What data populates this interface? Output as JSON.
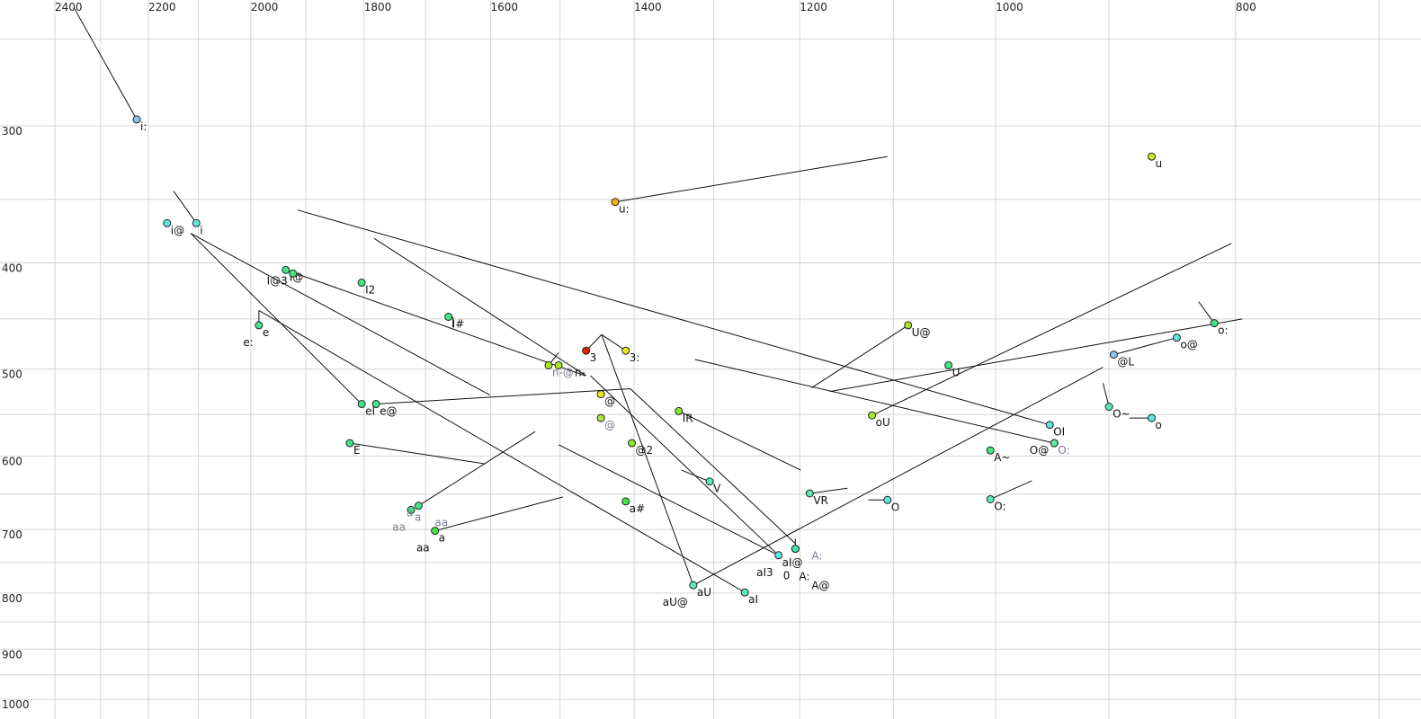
{
  "chart_data": {
    "type": "scatter",
    "title": "",
    "xlabel": "",
    "ylabel": "",
    "x_scale": "log",
    "y_scale": "log",
    "x_reversed": true,
    "xlim": [
      2400,
      700
    ],
    "ylim": [
      250,
      1000
    ],
    "grid": true,
    "x_gridlines": [
      2400,
      2300,
      2200,
      2100,
      2000,
      1900,
      1800,
      1700,
      1600,
      1500,
      1400,
      1300,
      1200,
      1100,
      1000,
      900,
      800,
      700
    ],
    "y_gridlines": [
      250,
      300,
      350,
      400,
      450,
      500,
      550,
      600,
      650,
      700,
      750,
      800,
      850,
      900,
      950,
      1000
    ],
    "x_ticks": [
      "2400",
      "2200",
      "2000",
      "1800",
      "1600",
      "1400",
      "1200",
      "1000",
      "800"
    ],
    "y_ticks": [
      "300",
      "400",
      "500",
      "600",
      "700",
      "800",
      "900",
      "1000"
    ],
    "colors": {
      "light_blue": "#8cc4f0",
      "cyan": "#5ee8dc",
      "green": "#44e48a",
      "bright_green": "#44e444",
      "yellow_green": "#a8e820",
      "yellow": "#e8e820",
      "orange": "#f0b010",
      "red": "#e02000"
    },
    "points": [
      {
        "labels": [
          "i:"
        ],
        "f2": 2224,
        "f1": 296,
        "color": "#8cc4f0"
      },
      {
        "labels": [
          "u"
        ],
        "f2": 865,
        "f1": 320,
        "color": "#c8e820"
      },
      {
        "labels": [
          "u:"
        ],
        "f2": 1425,
        "f1": 352,
        "color": "#f0b010"
      },
      {
        "labels": [
          "i@"
        ],
        "f2": 2162,
        "f1": 368,
        "color": "#5ee8dc"
      },
      {
        "labels": [
          "i"
        ],
        "f2": 2104,
        "f1": 368,
        "color": "#5ee8dc"
      },
      {
        "labels": [
          "I@"
        ],
        "f2": 1936,
        "f1": 406,
        "color": "#44e48a"
      },
      {
        "labels": [
          "I@3"
        ],
        "f2": 1923,
        "f1": 409,
        "color": "#44e48a"
      },
      {
        "labels": [
          "I2"
        ],
        "f2": 1804,
        "f1": 417,
        "color": "#44e48a"
      },
      {
        "labels": [
          "I#"
        ],
        "f2": 1664,
        "f1": 448,
        "color": "#44e48a"
      },
      {
        "labels": [
          "e",
          "e:"
        ],
        "f2": 1985,
        "f1": 456,
        "color": "#44e48a"
      },
      {
        "labels": [
          "3"
        ],
        "f2": 1464,
        "f1": 481,
        "color": "#e02000"
      },
      {
        "labels": [
          "3:"
        ],
        "f2": 1411,
        "f1": 481,
        "color": "#e8e820"
      },
      {
        "labels": [
          "U@"
        ],
        "f2": 1085,
        "f1": 456,
        "color": "#a8e820"
      },
      {
        "labels": [
          "@L"
        ],
        "f2": 896,
        "f1": 485,
        "color": "#8cc4f0"
      },
      {
        "labels": [
          "o@"
        ],
        "f2": 845,
        "f1": 468,
        "color": "#5ee8dc"
      },
      {
        "labels": [
          "o:"
        ],
        "f2": 816,
        "f1": 454,
        "color": "#44e48a"
      },
      {
        "labels": [
          "n-@"
        ],
        "f2": 1516,
        "f1": 496,
        "color": "#a8e820",
        "gray": true
      },
      {
        "labels": [
          "n-"
        ],
        "f2": 1502,
        "f1": 496,
        "color": "#a8e820"
      },
      {
        "labels": [
          "U"
        ],
        "f2": 1045,
        "f1": 496,
        "color": "#44e48a"
      },
      {
        "labels": [
          "@"
        ],
        "f2": 1444,
        "f1": 527,
        "color": "#e8e820"
      },
      {
        "labels": [
          "@"
        ],
        "f2": 1444,
        "f1": 554,
        "color": "#a8e844",
        "gray": true
      },
      {
        "labels": [
          "eI"
        ],
        "f2": 1804,
        "f1": 538,
        "color": "#44e48a"
      },
      {
        "labels": [
          "e@"
        ],
        "f2": 1780,
        "f1": 538,
        "color": "#44e48a"
      },
      {
        "labels": [
          "IR"
        ],
        "f2": 1343,
        "f1": 546,
        "color": "#88e830"
      },
      {
        "labels": [
          "oU"
        ],
        "f2": 1122,
        "f1": 551,
        "color": "#a8e820"
      },
      {
        "labels": [
          "O~"
        ],
        "f2": 900,
        "f1": 541,
        "color": "#5ee8b0"
      },
      {
        "labels": [
          "o"
        ],
        "f2": 865,
        "f1": 554,
        "color": "#5ee8dc"
      },
      {
        "labels": [
          "OI"
        ],
        "f2": 951,
        "f1": 562,
        "color": "#5ee8dc"
      },
      {
        "labels": [
          "O:"
        ],
        "f2": 947,
        "f1": 584,
        "color": "#5ee8a0",
        "gray": true
      },
      {
        "labels": [
          "O@"
        ],
        "f2": 947,
        "f1": 584,
        "color": "#5ee8a0"
      },
      {
        "labels": [
          "E"
        ],
        "f2": 1824,
        "f1": 584,
        "color": "#44e48a"
      },
      {
        "labels": [
          "@2"
        ],
        "f2": 1403,
        "f1": 584,
        "color": "#88e830"
      },
      {
        "labels": [
          "A~"
        ],
        "f2": 1005,
        "f1": 593,
        "color": "#44e48a"
      },
      {
        "labels": [
          "V"
        ],
        "f2": 1305,
        "f1": 633,
        "color": "#5ee8b0"
      },
      {
        "labels": [
          "VR"
        ],
        "f2": 1189,
        "f1": 649,
        "color": "#5ee8b0"
      },
      {
        "labels": [
          "O"
        ],
        "f2": 1106,
        "f1": 658,
        "color": "#5ee8dc"
      },
      {
        "labels": [
          "O:"
        ],
        "f2": 1005,
        "f1": 657,
        "color": "#5ee8b0"
      },
      {
        "labels": [
          "a#"
        ],
        "f2": 1411,
        "f1": 660,
        "color": "#44e444"
      },
      {
        "labels": [
          "a",
          "aa"
        ],
        "f2": 1723,
        "f1": 672,
        "color": "#44e48a",
        "gray": true
      },
      {
        "labels": [
          "a",
          "aa"
        ],
        "f2": 1711,
        "f1": 666,
        "color": "#44e48a",
        "gray": true
      },
      {
        "labels": [
          "a",
          "aa"
        ],
        "f2": 1685,
        "f1": 702,
        "color": "#44e444"
      },
      {
        "labels": [
          "aI@",
          "aI3"
        ],
        "f2": 1224,
        "f1": 739,
        "color": "#5ee8dc"
      },
      {
        "labels": [
          "A:"
        ],
        "f2": 1205,
        "f1": 729,
        "color": "#44e4b0",
        "gray": true
      },
      {
        "labels": [
          "",
          "A:",
          "0",
          "A@"
        ],
        "f2": 1205,
        "f1": 729,
        "color": "#44e4b0"
      },
      {
        "labels": [
          "aU",
          "aU@"
        ],
        "f2": 1325,
        "f1": 787,
        "color": "#5ee8c0"
      },
      {
        "labels": [
          "aI"
        ],
        "f2": 1263,
        "f1": 799,
        "color": "#5ee8c0"
      }
    ],
    "lines": [
      [
        [
          2358,
          234
        ],
        [
          2224,
          296
        ]
      ],
      [
        [
          2149,
          344
        ],
        [
          2104,
          368
        ]
      ],
      [
        [
          2115,
          376
        ],
        [
          1601,
          528
        ]
      ],
      [
        [
          2115,
          376
        ],
        [
          1804,
          538
        ]
      ],
      [
        [
          1915,
          358
        ],
        [
          951,
          562
        ]
      ],
      [
        [
          1783,
          380
        ],
        [
          1464,
          507
        ]
      ],
      [
        [
          1936,
          406
        ],
        [
          1465,
          507
        ]
      ],
      [
        [
          1985,
          442
        ],
        [
          1985,
          456
        ]
      ],
      [
        [
          1985,
          442
        ],
        [
          1263,
          799
        ]
      ],
      [
        [
          1780,
          538
        ],
        [
          1405,
          521
        ]
      ],
      [
        [
          1405,
          521
        ],
        [
          1205,
          721
        ]
      ],
      [
        [
          1443,
          465
        ],
        [
          1464,
          481
        ]
      ],
      [
        [
          1443,
          465
        ],
        [
          1411,
          481
        ]
      ],
      [
        [
          1443,
          465
        ],
        [
          1325,
          787
        ]
      ],
      [
        [
          1325,
          787
        ],
        [
          905,
          498
        ]
      ],
      [
        [
          1323,
          490
        ],
        [
          947,
          584
        ]
      ],
      [
        [
          1187,
          520
        ],
        [
          1085,
          456
        ]
      ],
      [
        [
          1167,
          524
        ],
        [
          795,
          450
        ]
      ],
      [
        [
          1122,
          551
        ],
        [
          803,
          384
        ]
      ],
      [
        [
          896,
          485
        ],
        [
          845,
          468
        ]
      ],
      [
        [
          828,
          434
        ],
        [
          816,
          454
        ]
      ],
      [
        [
          905,
          515
        ],
        [
          900,
          541
        ]
      ],
      [
        [
          883,
          554
        ],
        [
          865,
          554
        ]
      ],
      [
        [
          1343,
          546
        ],
        [
          1199,
          618
        ]
      ],
      [
        [
          1824,
          584
        ],
        [
          1608,
          610
        ]
      ],
      [
        [
          1711,
          666
        ],
        [
          1535,
          570
        ]
      ],
      [
        [
          1685,
          702
        ],
        [
          1496,
          654
        ]
      ],
      [
        [
          1502,
          586
        ],
        [
          1224,
          739
        ]
      ],
      [
        [
          1458,
          507
        ],
        [
          1224,
          739
        ]
      ],
      [
        [
          1340,
          618
        ],
        [
          1305,
          633
        ]
      ],
      [
        [
          1189,
          649
        ],
        [
          1148,
          642
        ]
      ],
      [
        [
          1126,
          658
        ],
        [
          1106,
          658
        ]
      ],
      [
        [
          1005,
          657
        ],
        [
          967,
          632
        ]
      ],
      [
        [
          1425,
          352
        ],
        [
          1106,
          320
        ]
      ],
      [
        [
          1516,
          496
        ],
        [
          1502,
          483
        ]
      ],
      [
        [
          1657,
          448
        ],
        [
          1657,
          458
        ]
      ],
      [
        [
          1205,
          714
        ],
        [
          1205,
          729
        ]
      ]
    ]
  }
}
